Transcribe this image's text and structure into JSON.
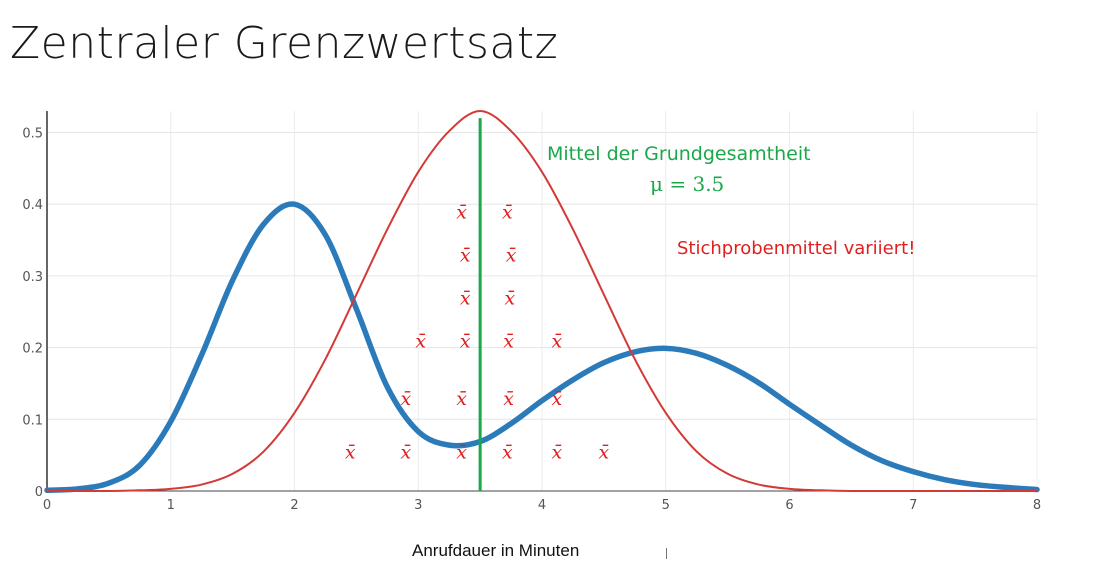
{
  "slide": {
    "title": "Zentraler Grenzwertsatz"
  },
  "chart_data": {
    "type": "line",
    "xlabel": "Anrufdauer in Minuten",
    "ylabel": "",
    "xlim": [
      0,
      8
    ],
    "ylim": [
      0,
      0.53
    ],
    "xticks": [
      0,
      1,
      2,
      3,
      4,
      5,
      6,
      7,
      8
    ],
    "yticks": [
      0,
      0.1,
      0.2,
      0.3,
      0.4,
      0.5
    ],
    "ytick_labels": [
      "0",
      "0.1",
      "0.2",
      "0.3",
      "0.4",
      "0.5"
    ],
    "grid": true,
    "series": [
      {
        "color": "#2b7bba",
        "x": [
          0,
          0.25,
          0.5,
          0.75,
          1.0,
          1.25,
          1.5,
          1.75,
          2.0,
          2.25,
          2.5,
          2.75,
          3.0,
          3.25,
          3.5,
          3.75,
          4.0,
          4.25,
          4.5,
          4.75,
          5.0,
          5.25,
          5.5,
          5.75,
          6.0,
          6.25,
          6.5,
          6.75,
          7.0,
          7.25,
          7.5,
          7.75,
          8.0
        ],
        "values": [
          0.001,
          0.003,
          0.011,
          0.036,
          0.097,
          0.19,
          0.294,
          0.372,
          0.4,
          0.357,
          0.254,
          0.145,
          0.083,
          0.064,
          0.069,
          0.094,
          0.126,
          0.155,
          0.179,
          0.194,
          0.199,
          0.192,
          0.175,
          0.151,
          0.121,
          0.092,
          0.064,
          0.042,
          0.027,
          0.016,
          0.009,
          0.005,
          0.002
        ]
      },
      {
        "color": "#d33a36",
        "x": [
          0,
          0.25,
          0.5,
          0.75,
          1.0,
          1.25,
          1.5,
          1.75,
          2.0,
          2.25,
          2.5,
          2.75,
          3.0,
          3.25,
          3.5,
          3.75,
          4.0,
          4.25,
          4.5,
          4.75,
          5.0,
          5.25,
          5.5,
          5.75,
          6.0,
          6.25,
          6.5,
          6.75,
          7.0,
          7.25,
          7.5,
          7.75,
          8.0
        ],
        "values": [
          0.0,
          0.0,
          0.0,
          0.001,
          0.003,
          0.009,
          0.024,
          0.055,
          0.109,
          0.184,
          0.274,
          0.365,
          0.445,
          0.502,
          0.53,
          0.502,
          0.445,
          0.365,
          0.274,
          0.184,
          0.109,
          0.055,
          0.024,
          0.009,
          0.003,
          0.001,
          0.0,
          0.0,
          0.0,
          0.0,
          0.0,
          0.0,
          0.0
        ]
      }
    ],
    "mean_line": {
      "x": 3.5,
      "color": "#1aa84a",
      "y_top": 0.52
    },
    "annotations": {
      "mean_title": "Mittel der Grundgesamtheit",
      "mean_formula": "μ = 3.5",
      "sample_note": "Stichprobenmittel variiert!",
      "sample_symbol": "x̄",
      "sample_color": "#e02020",
      "mean_color": "#1aa84a"
    },
    "sample_means": [
      [
        3.35,
        0.38
      ],
      [
        3.72,
        0.38
      ],
      [
        3.38,
        0.32
      ],
      [
        3.75,
        0.32
      ],
      [
        3.38,
        0.26
      ],
      [
        3.74,
        0.26
      ],
      [
        3.02,
        0.2
      ],
      [
        3.38,
        0.2
      ],
      [
        3.73,
        0.2
      ],
      [
        4.12,
        0.2
      ],
      [
        2.9,
        0.12
      ],
      [
        3.35,
        0.12
      ],
      [
        3.73,
        0.12
      ],
      [
        4.12,
        0.12
      ],
      [
        2.45,
        0.045
      ],
      [
        2.9,
        0.045
      ],
      [
        3.35,
        0.045
      ],
      [
        3.72,
        0.045
      ],
      [
        4.12,
        0.045
      ],
      [
        4.5,
        0.045
      ]
    ]
  }
}
